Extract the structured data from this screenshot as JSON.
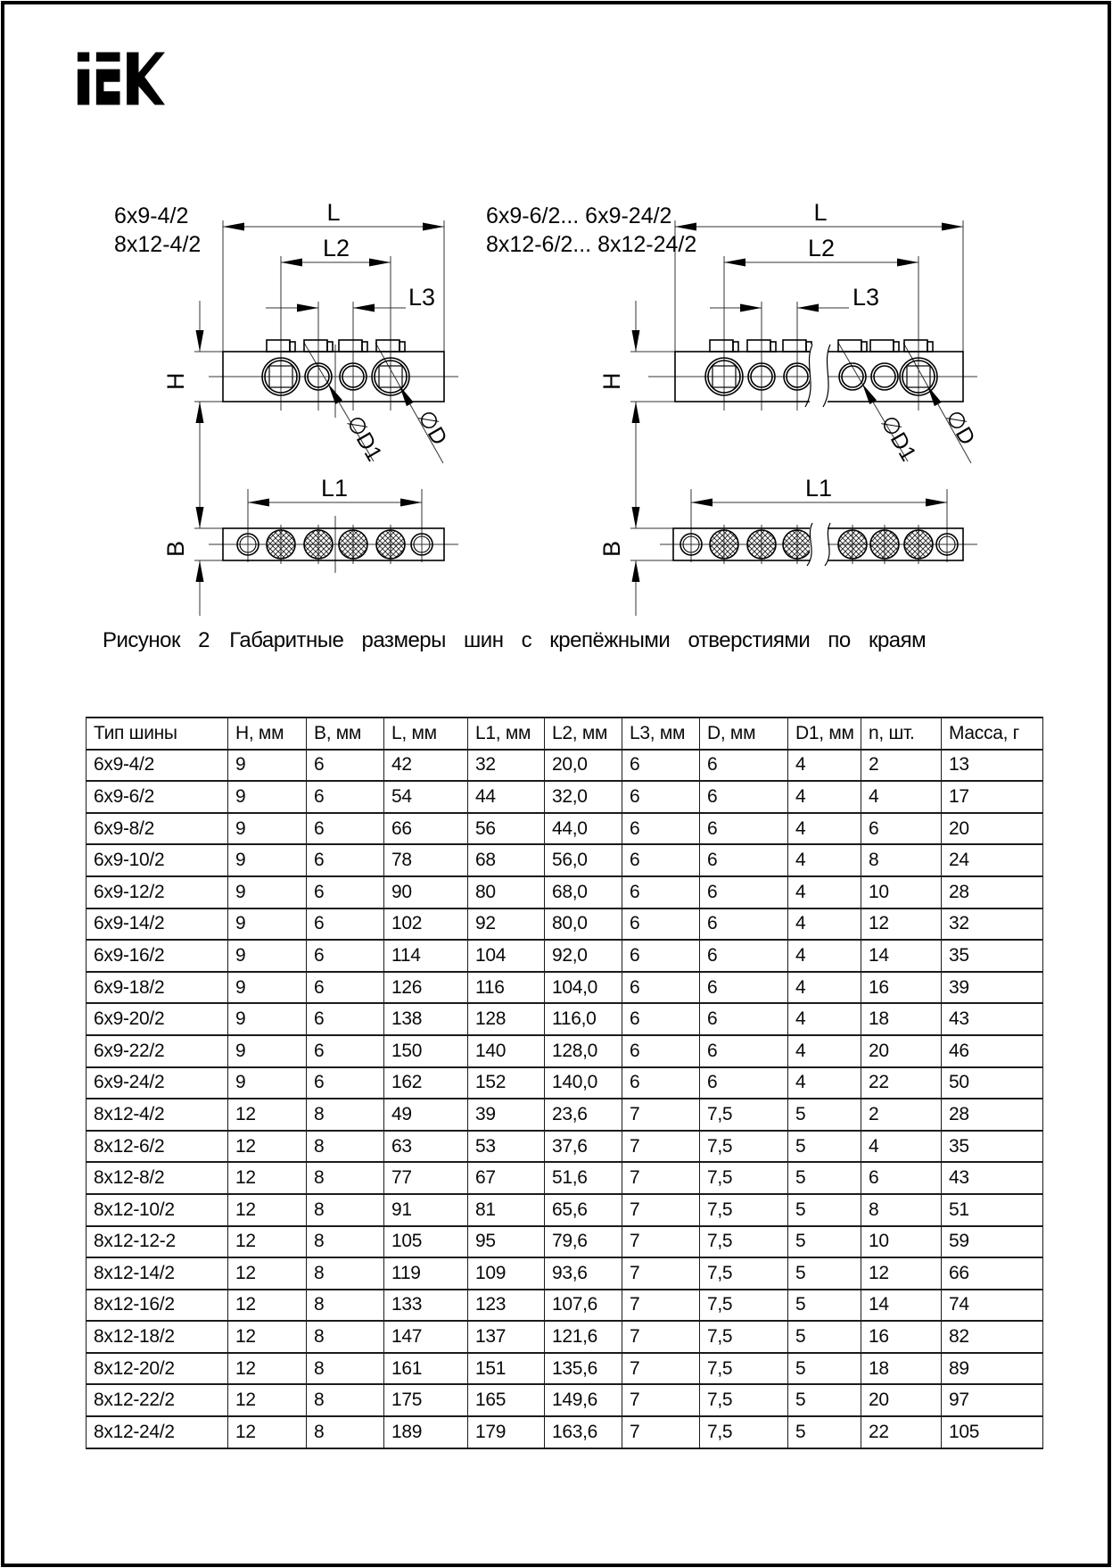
{
  "logo": {
    "name": "IEK"
  },
  "figure": {
    "caption_prefix": "Рисунок 2",
    "caption_text": "Габаритные размеры шин с крепёжными отверстиями по краям",
    "left_variant": {
      "line1": "6x9-4/2",
      "line2": "8x12-4/2"
    },
    "right_variant": {
      "line1": "6x9-6/2... 6x9-24/2",
      "line2": "8x12-6/2... 8x12-24/2"
    },
    "dims": {
      "L": "L",
      "L1": "L1",
      "L2": "L2",
      "L3": "L3",
      "H": "H",
      "B": "B",
      "D": "∅D",
      "D1": "∅D1"
    }
  },
  "table": {
    "headers": [
      "Тип шины",
      "H, мм",
      "B, мм",
      "L, мм",
      "L1, мм",
      "L2, мм",
      "L3, мм",
      "D, мм",
      "D1, мм",
      "n, шт.",
      "Масса, г"
    ],
    "rows": [
      [
        "6x9-4/2",
        "9",
        "6",
        "42",
        "32",
        "20,0",
        "6",
        "6",
        "4",
        "2",
        "13"
      ],
      [
        "6x9-6/2",
        "9",
        "6",
        "54",
        "44",
        "32,0",
        "6",
        "6",
        "4",
        "4",
        "17"
      ],
      [
        "6x9-8/2",
        "9",
        "6",
        "66",
        "56",
        "44,0",
        "6",
        "6",
        "4",
        "6",
        "20"
      ],
      [
        "6x9-10/2",
        "9",
        "6",
        "78",
        "68",
        "56,0",
        "6",
        "6",
        "4",
        "8",
        "24"
      ],
      [
        "6x9-12/2",
        "9",
        "6",
        "90",
        "80",
        "68,0",
        "6",
        "6",
        "4",
        "10",
        "28"
      ],
      [
        "6x9-14/2",
        "9",
        "6",
        "102",
        "92",
        "80,0",
        "6",
        "6",
        "4",
        "12",
        "32"
      ],
      [
        "6x9-16/2",
        "9",
        "6",
        "114",
        "104",
        "92,0",
        "6",
        "6",
        "4",
        "14",
        "35"
      ],
      [
        "6x9-18/2",
        "9",
        "6",
        "126",
        "116",
        "104,0",
        "6",
        "6",
        "4",
        "16",
        "39"
      ],
      [
        "6x9-20/2",
        "9",
        "6",
        "138",
        "128",
        "116,0",
        "6",
        "6",
        "4",
        "18",
        "43"
      ],
      [
        "6x9-22/2",
        "9",
        "6",
        "150",
        "140",
        "128,0",
        "6",
        "6",
        "4",
        "20",
        "46"
      ],
      [
        "6x9-24/2",
        "9",
        "6",
        "162",
        "152",
        "140,0",
        "6",
        "6",
        "4",
        "22",
        "50"
      ],
      [
        "8x12-4/2",
        "12",
        "8",
        "49",
        "39",
        "23,6",
        "7",
        "7,5",
        "5",
        "2",
        "28"
      ],
      [
        "8x12-6/2",
        "12",
        "8",
        "63",
        "53",
        "37,6",
        "7",
        "7,5",
        "5",
        "4",
        "35"
      ],
      [
        "8x12-8/2",
        "12",
        "8",
        "77",
        "67",
        "51,6",
        "7",
        "7,5",
        "5",
        "6",
        "43"
      ],
      [
        "8x12-10/2",
        "12",
        "8",
        "91",
        "81",
        "65,6",
        "7",
        "7,5",
        "5",
        "8",
        "51"
      ],
      [
        "8x12-12-2",
        "12",
        "8",
        "105",
        "95",
        "79,6",
        "7",
        "7,5",
        "5",
        "10",
        "59"
      ],
      [
        "8x12-14/2",
        "12",
        "8",
        "119",
        "109",
        "93,6",
        "7",
        "7,5",
        "5",
        "12",
        "66"
      ],
      [
        "8x12-16/2",
        "12",
        "8",
        "133",
        "123",
        "107,6",
        "7",
        "7,5",
        "5",
        "14",
        "74"
      ],
      [
        "8x12-18/2",
        "12",
        "8",
        "147",
        "137",
        "121,6",
        "7",
        "7,5",
        "5",
        "16",
        "82"
      ],
      [
        "8x12-20/2",
        "12",
        "8",
        "161",
        "151",
        "135,6",
        "7",
        "7,5",
        "5",
        "18",
        "89"
      ],
      [
        "8x12-22/2",
        "12",
        "8",
        "175",
        "165",
        "149,6",
        "7",
        "7,5",
        "5",
        "20",
        "97"
      ],
      [
        "8x12-24/2",
        "12",
        "8",
        "189",
        "179",
        "163,6",
        "7",
        "7,5",
        "5",
        "22",
        "105"
      ]
    ]
  }
}
